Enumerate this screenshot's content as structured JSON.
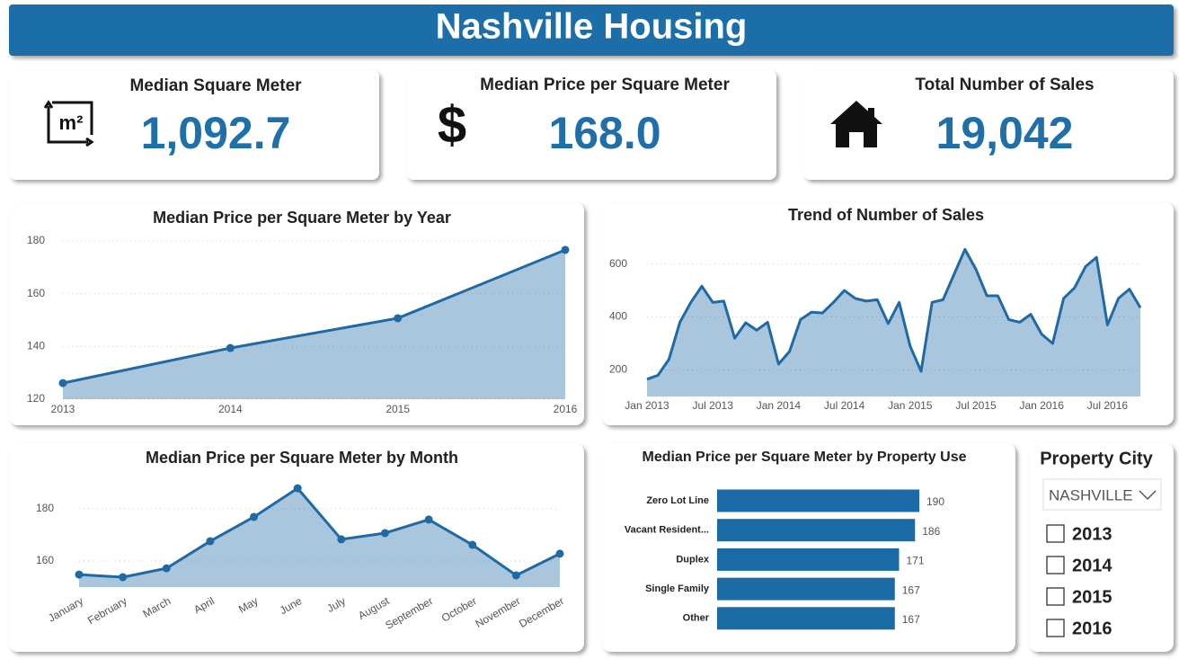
{
  "title": "Nashville Housing",
  "cards": [
    {
      "label": "Median Square Meter",
      "value": "1,092.7",
      "icon": "m²"
    },
    {
      "label": "Median Price per Square Meter",
      "value": "168.0",
      "icon": "$"
    },
    {
      "label": "Total Number of Sales",
      "value": "19,042"
    }
  ],
  "chart_data": [
    {
      "type": "area",
      "title": "Median Price per Square Meter by Year",
      "categories": [
        "2013",
        "2014",
        "2015",
        "2016"
      ],
      "values": [
        126.1,
        139.4,
        150.7,
        176.6
      ],
      "ylim": [
        120,
        180
      ],
      "yticks": [
        120,
        140,
        160,
        180
      ],
      "grid": true,
      "color": "#1f6aa5"
    },
    {
      "type": "area",
      "title": "Trend of Number of Sales",
      "x": [
        "2013-01",
        "2013-02",
        "2013-03",
        "2013-04",
        "2013-05",
        "2013-06",
        "2013-07",
        "2013-08",
        "2013-09",
        "2013-10",
        "2013-11",
        "2013-12",
        "2014-01",
        "2014-02",
        "2014-03",
        "2014-04",
        "2014-05",
        "2014-06",
        "2014-07",
        "2014-08",
        "2014-09",
        "2014-10",
        "2014-11",
        "2014-12",
        "2015-01",
        "2015-02",
        "2015-03",
        "2015-04",
        "2015-05",
        "2015-06",
        "2015-07",
        "2015-08",
        "2015-09",
        "2015-10",
        "2015-11",
        "2015-12",
        "2016-01",
        "2016-02",
        "2016-03",
        "2016-04",
        "2016-05",
        "2016-06",
        "2016-07",
        "2016-08",
        "2016-09",
        "2016-10"
      ],
      "values": [
        165,
        180,
        240,
        380,
        455,
        516,
        455,
        460,
        320,
        378,
        350,
        380,
        222,
        270,
        390,
        418,
        415,
        455,
        500,
        470,
        460,
        465,
        375,
        455,
        290,
        195,
        455,
        465,
        560,
        655,
        580,
        480,
        480,
        390,
        380,
        410,
        335,
        300,
        470,
        510,
        590,
        625,
        370,
        470,
        505,
        435
      ],
      "xticks": [
        {
          "value": "2013-01",
          "label": "Jan 2013"
        },
        {
          "value": "2013-07",
          "label": "Jul 2013"
        },
        {
          "value": "2014-01",
          "label": "Jan 2014"
        },
        {
          "value": "2014-07",
          "label": "Jul 2014"
        },
        {
          "value": "2015-01",
          "label": "Jan 2015"
        },
        {
          "value": "2015-07",
          "label": "Jul 2015"
        },
        {
          "value": "2016-01",
          "label": "Jan 2016"
        },
        {
          "value": "2016-07",
          "label": "Jul 2016"
        }
      ],
      "ylim": [
        100,
        680
      ],
      "yticks": [
        200,
        400,
        600
      ],
      "grid": true,
      "color": "#1f6aa5"
    },
    {
      "type": "area",
      "title": "Median Price per Square Meter by Month",
      "categories": [
        "January",
        "February",
        "March",
        "April",
        "May",
        "June",
        "July",
        "August",
        "September",
        "October",
        "November",
        "December"
      ],
      "values": [
        154.8,
        153.8,
        157.2,
        167.6,
        176.9,
        187.9,
        168.3,
        170.7,
        175.9,
        166.2,
        154.5,
        162.8
      ],
      "ylim": [
        150,
        190
      ],
      "yticks": [
        160,
        180
      ],
      "grid": true,
      "color": "#1f6aa5"
    },
    {
      "type": "hbar",
      "title": "Median Price per Square Meter by Property Use",
      "categories": [
        "Zero Lot Line",
        "Vacant Resident...",
        "Duplex",
        "Single Family",
        "Other"
      ],
      "values": [
        190,
        186,
        171,
        167,
        167
      ],
      "color": "#1a6aa5"
    }
  ],
  "slicer": {
    "title": "Property City",
    "dropdown": "NASHVILLE",
    "options": [
      "2013",
      "2014",
      "2015",
      "2016"
    ]
  }
}
